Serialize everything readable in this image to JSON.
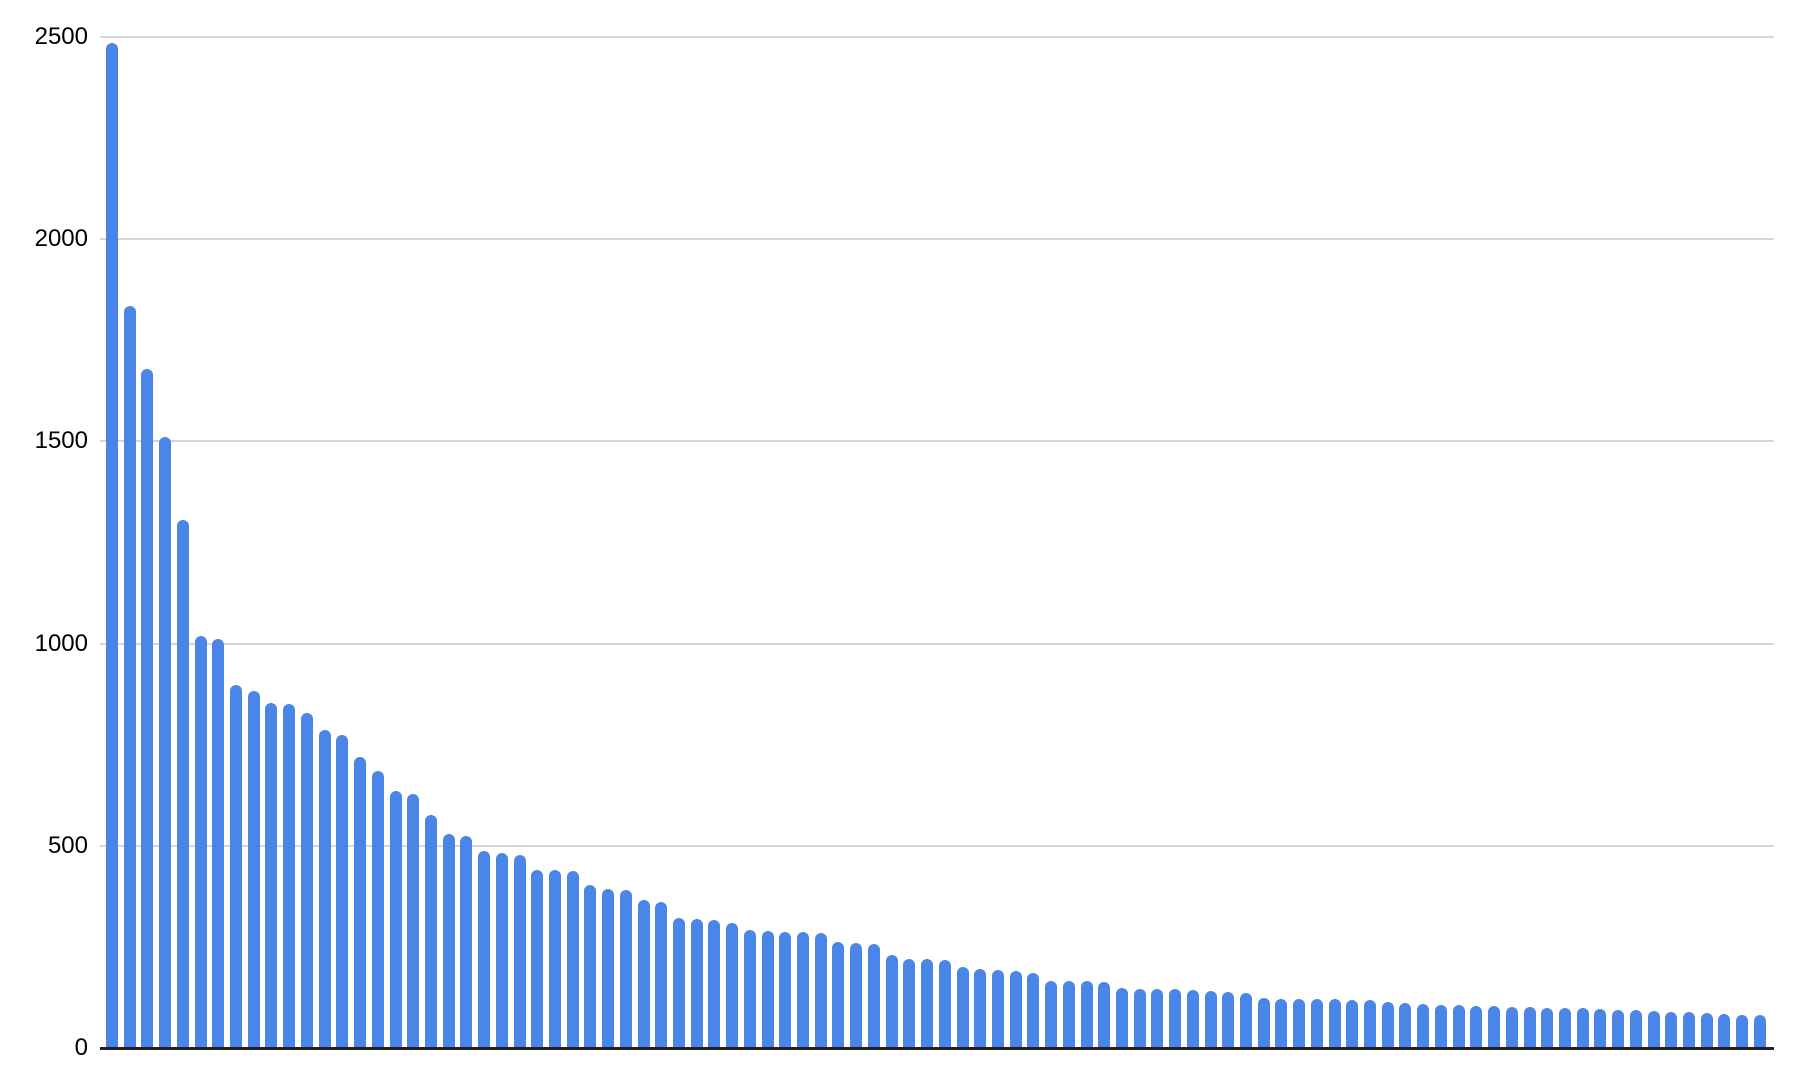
{
  "chart_data": {
    "type": "bar",
    "title": "",
    "xlabel": "",
    "ylabel": "",
    "x_axis_labels": "none",
    "grid": "horizontal",
    "legend": "none",
    "ylim": [
      0,
      2500
    ],
    "yticks": [
      0,
      500,
      1000,
      1500,
      2000,
      2500
    ],
    "bar_count": 94,
    "values": [
      2485,
      1835,
      1680,
      1510,
      1305,
      1020,
      1012,
      898,
      883,
      853,
      850,
      828,
      786,
      774,
      719,
      684,
      635,
      627,
      575,
      530,
      525,
      487,
      483,
      477,
      440,
      439,
      437,
      402,
      392,
      390,
      365,
      362,
      322,
      320,
      317,
      310,
      293,
      290,
      288,
      288,
      285,
      263,
      260,
      258,
      231,
      221,
      219,
      218,
      201,
      196,
      193,
      191,
      186,
      166,
      165,
      165,
      164,
      149,
      146,
      145,
      145,
      143,
      141,
      138,
      135,
      124,
      122,
      121,
      120,
      120,
      119,
      118,
      113,
      111,
      109,
      107,
      106,
      104,
      103,
      102,
      101,
      100,
      99,
      98,
      97,
      95,
      93,
      91,
      89,
      88,
      86,
      84,
      82,
      81
    ],
    "colors": {
      "bar": "#4a85e8",
      "gridline": "#d6d6d6",
      "axis_line": "#212121",
      "tick_label": "#000000",
      "background": "#ffffff"
    }
  }
}
